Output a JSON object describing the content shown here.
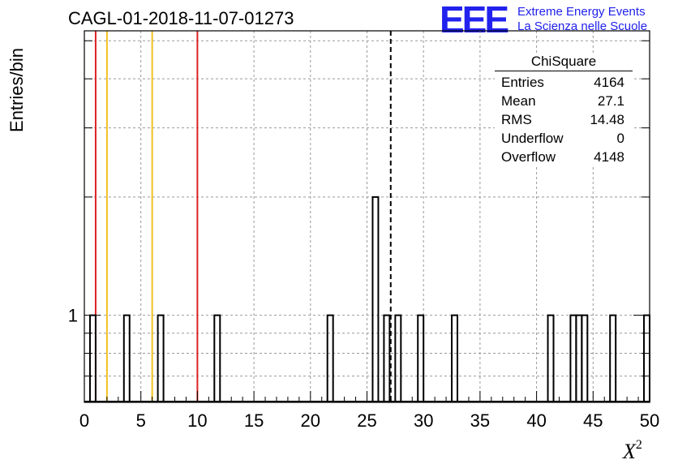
{
  "chart_data": {
    "type": "bar",
    "title": "CAGL-01-2018-11-07-01273",
    "xlabel": "X",
    "xlabel_sup": "2",
    "ylabel": "Entries/bin",
    "xlim": [
      0,
      50
    ],
    "ylim": [
      0.6,
      5.3
    ],
    "y_log": true,
    "grid": true,
    "x_ticks": [
      "0",
      "5",
      "10",
      "15",
      "20",
      "25",
      "30",
      "35",
      "40",
      "45",
      "50"
    ],
    "y_tick_label": "1",
    "bin_width": 0.5,
    "bins": [
      {
        "x": 0.5,
        "value": 1
      },
      {
        "x": 3.5,
        "value": 1
      },
      {
        "x": 6.5,
        "value": 1
      },
      {
        "x": 11.5,
        "value": 1
      },
      {
        "x": 21.5,
        "value": 1
      },
      {
        "x": 25.5,
        "value": 2
      },
      {
        "x": 26.5,
        "value": 1
      },
      {
        "x": 27.5,
        "value": 1
      },
      {
        "x": 29.5,
        "value": 1
      },
      {
        "x": 32.5,
        "value": 1
      },
      {
        "x": 41.0,
        "value": 1
      },
      {
        "x": 43.0,
        "value": 1
      },
      {
        "x": 43.5,
        "value": 1
      },
      {
        "x": 44.0,
        "value": 1
      },
      {
        "x": 46.5,
        "value": 1
      },
      {
        "x": 49.5,
        "value": 1
      }
    ],
    "vertical_lines": [
      {
        "x": 1,
        "color": "#dd2222",
        "style": "solid"
      },
      {
        "x": 2,
        "color": "#f0c020",
        "style": "solid"
      },
      {
        "x": 6,
        "color": "#f0c020",
        "style": "solid"
      },
      {
        "x": 10,
        "color": "#dd2222",
        "style": "solid"
      },
      {
        "x": 27.1,
        "color": "#000000",
        "style": "dashed"
      }
    ],
    "stats": {
      "title": "ChiSquare",
      "rows": [
        {
          "label": "Entries",
          "value": "4164"
        },
        {
          "label": "Mean",
          "value": "27.1"
        },
        {
          "label": "RMS",
          "value": "14.48"
        },
        {
          "label": "Underflow",
          "value": "0"
        },
        {
          "label": "Overflow",
          "value": "4148"
        }
      ]
    }
  },
  "logo": {
    "mark": "EEE",
    "line1": "Extreme Energy Events",
    "line2": "La Scienza nelle Scuole",
    "color": "#2222ee"
  }
}
